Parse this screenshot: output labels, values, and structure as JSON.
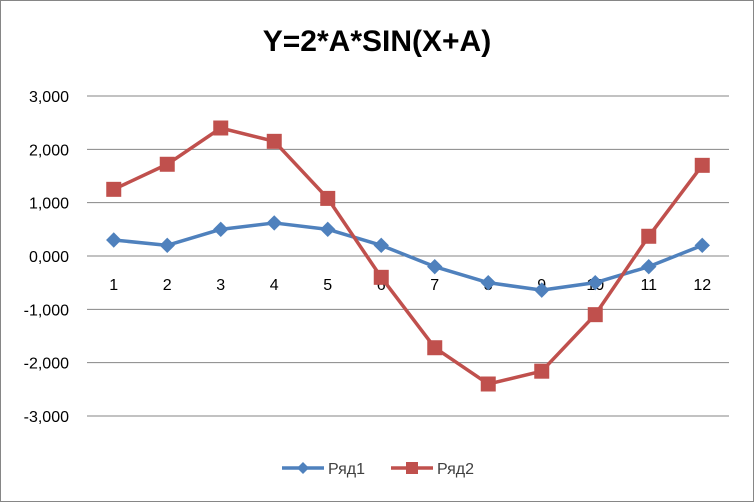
{
  "chart_data": {
    "type": "line",
    "title": "Y=2*A*SIN(X+A)",
    "xlabel": "",
    "ylabel": "",
    "categories": [
      "1",
      "2",
      "3",
      "4",
      "5",
      "6",
      "7",
      "8",
      "9",
      "10",
      "11",
      "12"
    ],
    "ylim": [
      -3,
      3
    ],
    "ytick_values": [
      3,
      2,
      1,
      0,
      -1,
      -2,
      -3
    ],
    "ytick_labels": [
      "3,000",
      "2,000",
      "1,000",
      "0,000",
      "-1,000",
      "-2,000",
      "-3,000"
    ],
    "grid": true,
    "legend_position": "bottom",
    "series": [
      {
        "name": "Ряд1",
        "color": "#4f81bd",
        "marker": "diamond",
        "values": [
          0.3,
          0.2,
          0.5,
          0.62,
          0.5,
          0.2,
          -0.2,
          -0.5,
          -0.64,
          -0.5,
          -0.2,
          0.2
        ]
      },
      {
        "name": "Ряд2",
        "color": "#c0504d",
        "marker": "square",
        "values": [
          1.25,
          1.72,
          2.4,
          2.15,
          1.08,
          -0.4,
          -1.72,
          -2.4,
          -2.16,
          -1.1,
          0.37,
          1.7
        ]
      }
    ]
  }
}
